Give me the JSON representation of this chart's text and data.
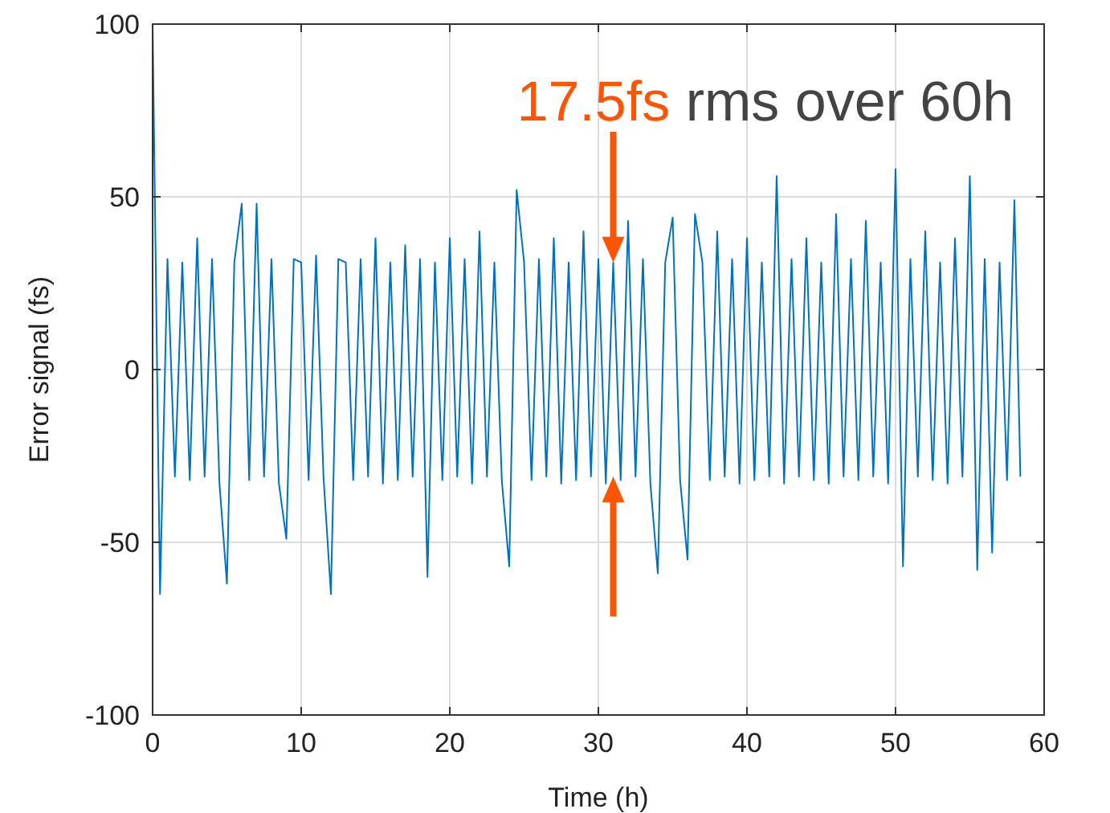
{
  "chart_data": {
    "type": "line",
    "xlabel": "Time (h)",
    "ylabel": "Error signal (fs)",
    "xlim": [
      0,
      60
    ],
    "ylim": [
      -100,
      100
    ],
    "xticks": [
      0,
      10,
      20,
      30,
      40,
      50,
      60
    ],
    "yticks": [
      -100,
      -50,
      0,
      50,
      100
    ],
    "grid": true,
    "marker": "none",
    "line_style": "solid",
    "annotations": [
      {
        "text": "17.5fs",
        "x": 31,
        "y": 31
      },
      "rms over 60h"
    ],
    "series": [
      {
        "color": "#0072bd",
        "x": [
          0,
          0.5,
          1,
          1.5,
          2,
          2.5,
          3,
          3.5,
          4,
          4.5,
          5,
          5.5,
          6,
          6.5,
          7,
          7.5,
          8,
          8.5,
          9,
          9.5,
          10,
          10.5,
          11,
          11.5,
          12,
          12.5,
          13,
          13.5,
          14,
          14.5,
          15,
          15.5,
          16,
          16.5,
          17,
          17.5,
          18,
          18.5,
          19,
          19.5,
          20,
          20.5,
          21,
          21.5,
          22,
          22.5,
          23,
          23.5,
          24,
          24.5,
          25,
          25.5,
          26,
          26.5,
          27,
          27.5,
          28,
          28.5,
          29,
          29.5,
          30,
          30.5,
          31,
          31.5,
          32,
          32.5,
          33,
          33.5,
          34,
          34.5,
          35,
          35.5,
          36,
          36.5,
          37,
          37.5,
          38,
          38.5,
          39,
          39.5,
          40,
          40.5,
          41,
          41.5,
          42,
          42.5,
          43,
          43.5,
          44,
          44.5,
          45,
          45.5,
          46,
          46.5,
          47,
          47.5,
          48,
          48.5,
          49,
          49.5,
          50,
          50.5,
          51,
          51.5,
          52,
          52.5,
          53,
          53.5,
          54,
          54.5,
          55,
          55.5,
          56,
          56.5,
          57,
          57.5,
          58,
          58.4
        ],
        "values": [
          100,
          -65,
          32,
          -31,
          31,
          -32,
          38,
          -31,
          32,
          -33,
          -62,
          31,
          48,
          -32,
          48,
          -31,
          32,
          -33,
          -49,
          32,
          31,
          -32,
          33,
          -31,
          -65,
          32,
          31,
          -32,
          32,
          -31,
          38,
          -33,
          31,
          -32,
          36,
          -31,
          32,
          -60,
          31,
          -32,
          38,
          -31,
          32,
          -33,
          40,
          -31,
          31,
          -32,
          -57,
          52,
          31,
          -32,
          32,
          -31,
          38,
          -33,
          31,
          -32,
          40,
          -31,
          32,
          -33,
          31,
          -32,
          43,
          -31,
          32,
          -33,
          -59,
          31,
          44,
          -32,
          -55,
          45,
          31,
          -32,
          40,
          -31,
          32,
          -33,
          38,
          -32,
          31,
          -31,
          56,
          -33,
          32,
          -31,
          38,
          -32,
          31,
          -33,
          45,
          -31,
          32,
          -32,
          43,
          -31,
          31,
          -33,
          58,
          -57,
          32,
          -31,
          40,
          -32,
          31,
          -33,
          38,
          -31,
          56,
          -58,
          32,
          -53,
          31,
          -32,
          49,
          -31
        ]
      }
    ]
  }
}
